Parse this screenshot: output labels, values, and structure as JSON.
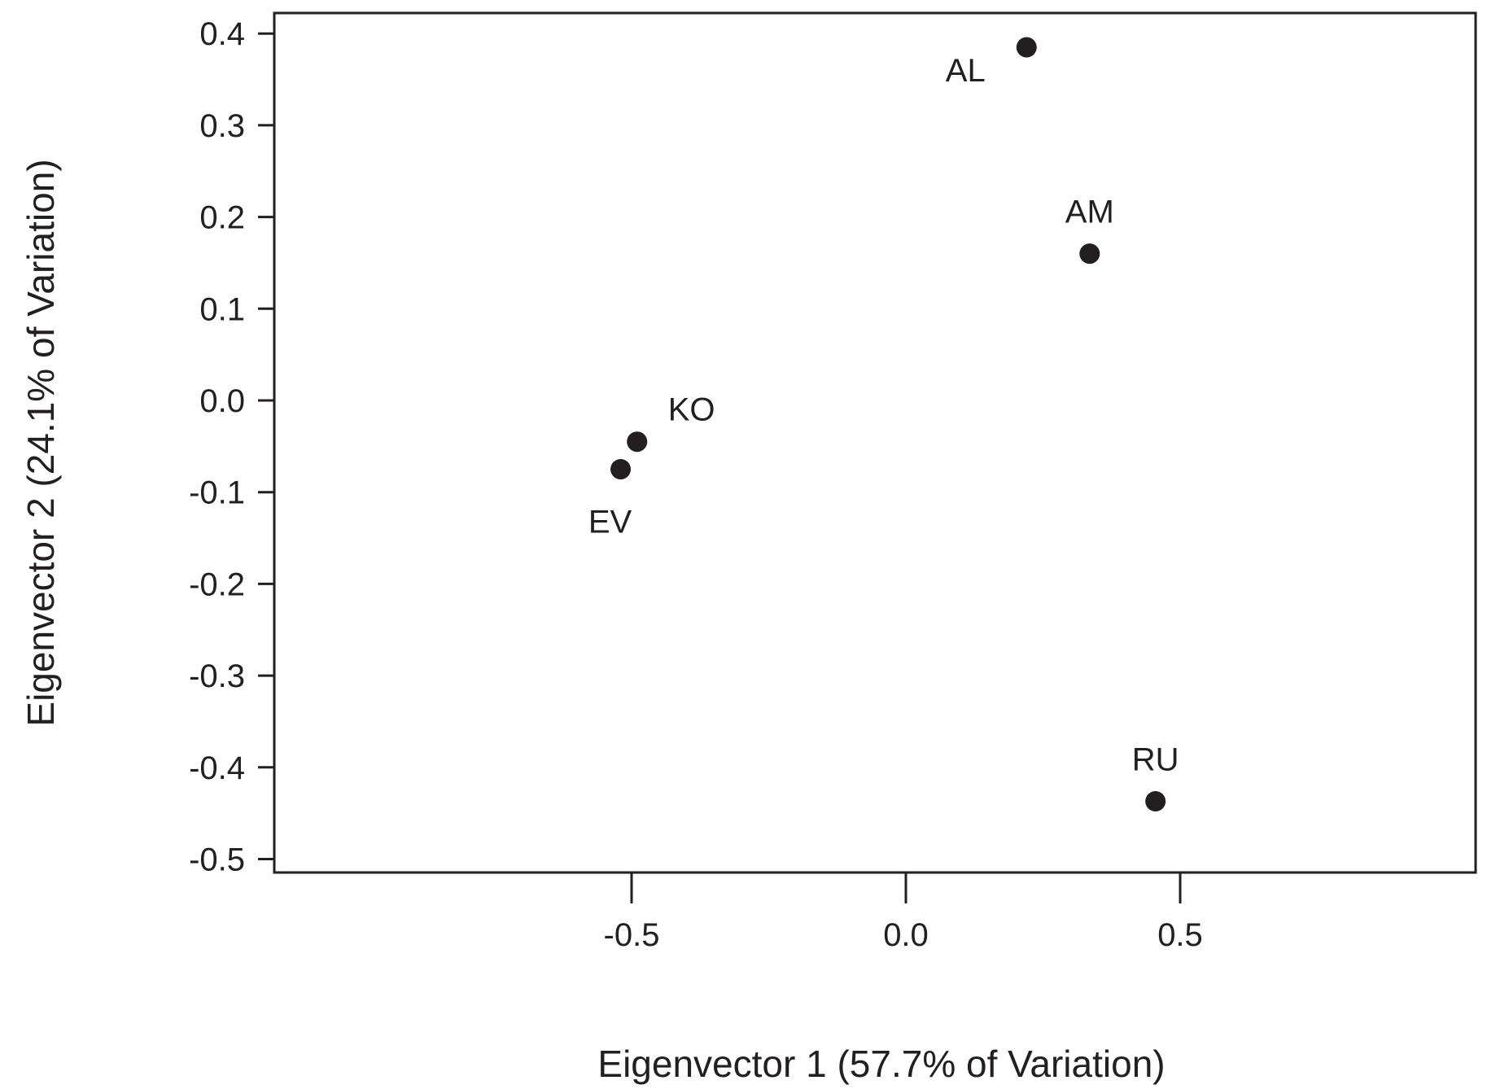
{
  "chart_data": {
    "type": "scatter",
    "title": "",
    "xlabel": "Eigenvector 1 (57.7% of Variation)",
    "ylabel": "Eigenvector 2 (24.1% of Variation)",
    "xlim": [
      -0.575,
      0.52
    ],
    "ylim": [
      -0.52,
      0.425
    ],
    "xticks": [
      -0.5,
      0.0,
      0.5
    ],
    "xtick_labels": [
      "-0.5",
      "0.0",
      "0.5"
    ],
    "yticks": [
      0.4,
      0.3,
      0.2,
      0.1,
      0.0,
      -0.1,
      -0.2,
      -0.3,
      -0.4,
      -0.5
    ],
    "ytick_labels": [
      "0.4",
      "0.3",
      "0.2",
      "0.1",
      "0.0",
      "-0.1",
      "-0.2",
      "-0.3",
      "-0.4",
      "-0.5"
    ],
    "grid": false,
    "legend": "none",
    "marker_color": "#231f20",
    "points": [
      {
        "label": "AL",
        "x": 0.22,
        "y": 0.385,
        "label_position": "below-left"
      },
      {
        "label": "AM",
        "x": 0.335,
        "y": 0.16,
        "label_position": "above"
      },
      {
        "label": "KO",
        "x": -0.49,
        "y": -0.045,
        "label_position": "upper-right"
      },
      {
        "label": "EV",
        "x": -0.52,
        "y": -0.075,
        "label_position": "below"
      },
      {
        "label": "RU",
        "x": 0.455,
        "y": -0.437,
        "label_position": "above"
      }
    ]
  }
}
